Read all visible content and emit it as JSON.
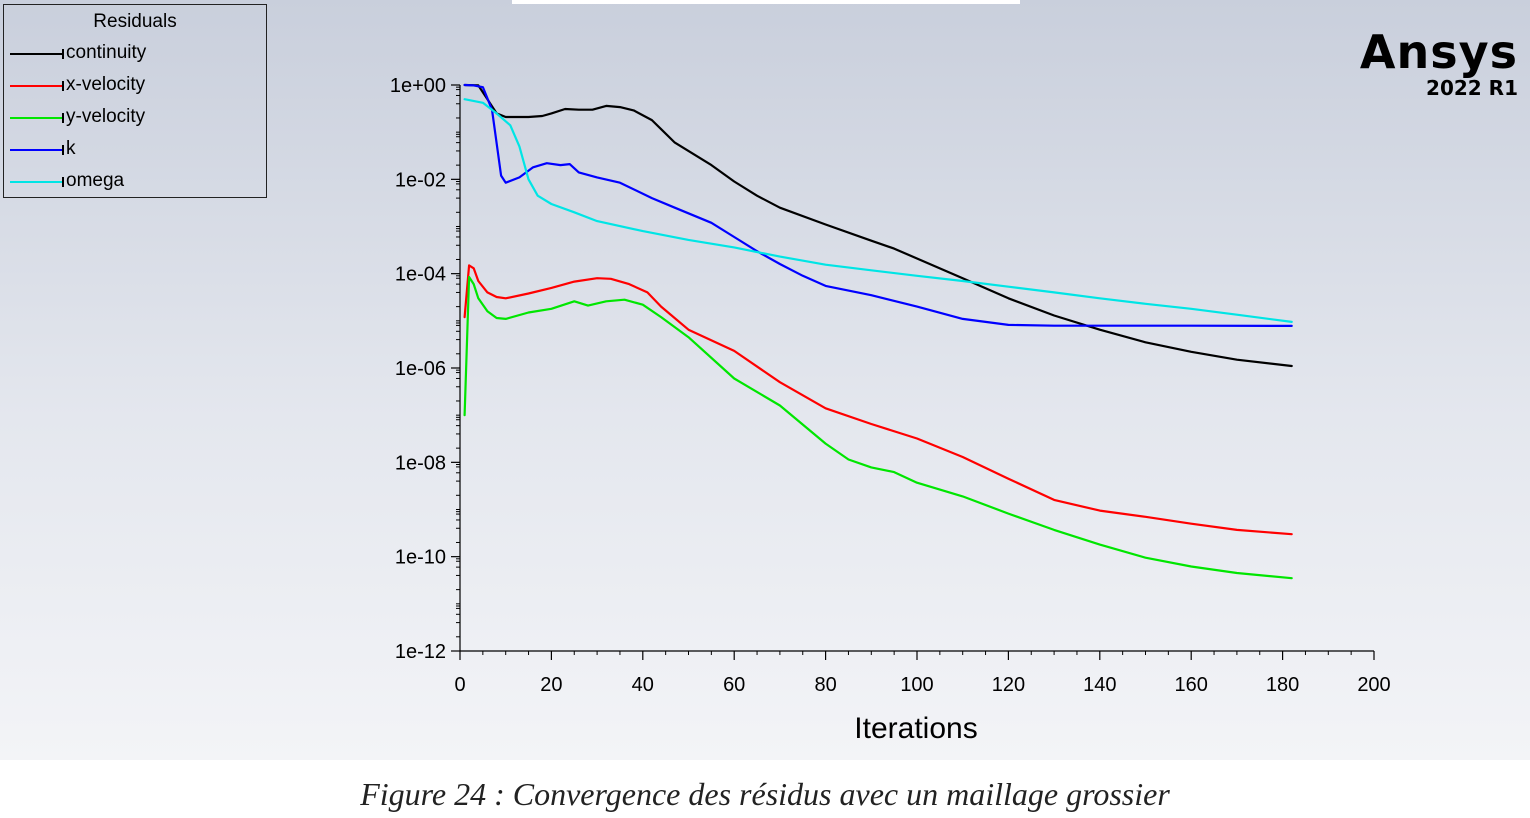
{
  "logo": {
    "brand": "Ansys",
    "version": "2022 R1"
  },
  "caption": "Figure 24 : Convergence des résidus avec un maillage grossier",
  "chart_data": {
    "type": "line",
    "xlabel": "Iterations",
    "ylabel": "",
    "xlim": [
      0,
      200
    ],
    "ylim": [
      1e-12,
      1
    ],
    "yscale": "log",
    "x_ticks": [
      0,
      20,
      40,
      60,
      80,
      100,
      120,
      140,
      160,
      180,
      200
    ],
    "x_tick_labels": [
      "0",
      "20",
      "40",
      "60",
      "80",
      "100",
      "120",
      "140",
      "160",
      "180",
      "200"
    ],
    "y_tick_exponents": [
      0,
      -2,
      -4,
      -6,
      -8,
      -10,
      -12
    ],
    "y_tick_labels": [
      "1e+00",
      "1e-02",
      "1e-04",
      "1e-06",
      "1e-08",
      "1e-10",
      "1e-12"
    ],
    "legend": {
      "title": "Residuals",
      "placement": "top-left"
    },
    "series": [
      {
        "name": "continuity",
        "color": "#000000",
        "points": [
          [
            1,
            1.0
          ],
          [
            4,
            0.98
          ],
          [
            6,
            0.5
          ],
          [
            8,
            0.25
          ],
          [
            10,
            0.21
          ],
          [
            15,
            0.21
          ],
          [
            18,
            0.22
          ],
          [
            20,
            0.25
          ],
          [
            23,
            0.31
          ],
          [
            26,
            0.3
          ],
          [
            29,
            0.3
          ],
          [
            32,
            0.36
          ],
          [
            35,
            0.34
          ],
          [
            38,
            0.29
          ],
          [
            42,
            0.18
          ],
          [
            47,
            0.06
          ],
          [
            55,
            0.02
          ],
          [
            60,
            0.009
          ],
          [
            65,
            0.0045
          ],
          [
            70,
            0.0025
          ],
          [
            80,
            0.0011
          ],
          [
            90,
            0.0005
          ],
          [
            95,
            0.00034
          ],
          [
            100,
            0.00021
          ],
          [
            110,
            8e-05
          ],
          [
            120,
            3e-05
          ],
          [
            130,
            1.3e-05
          ],
          [
            140,
            6.5e-06
          ],
          [
            150,
            3.5e-06
          ],
          [
            160,
            2.2e-06
          ],
          [
            170,
            1.5e-06
          ],
          [
            182,
            1.1e-06
          ]
        ]
      },
      {
        "name": "x-velocity",
        "color": "#ff0000",
        "points": [
          [
            1,
            1.2e-05
          ],
          [
            2,
            0.00015
          ],
          [
            3,
            0.00013
          ],
          [
            4,
            7e-05
          ],
          [
            6,
            4e-05
          ],
          [
            8,
            3.2e-05
          ],
          [
            10,
            3e-05
          ],
          [
            15,
            3.8e-05
          ],
          [
            20,
            5e-05
          ],
          [
            25,
            6.8e-05
          ],
          [
            30,
            8e-05
          ],
          [
            33,
            7.8e-05
          ],
          [
            37,
            6e-05
          ],
          [
            41,
            4e-05
          ],
          [
            44,
            2e-05
          ],
          [
            50,
            6.5e-06
          ],
          [
            60,
            2.3e-06
          ],
          [
            70,
            5e-07
          ],
          [
            80,
            1.4e-07
          ],
          [
            90,
            6.5e-08
          ],
          [
            100,
            3.2e-08
          ],
          [
            110,
            1.3e-08
          ],
          [
            120,
            4.5e-09
          ],
          [
            130,
            1.6e-09
          ],
          [
            140,
            9.5e-10
          ],
          [
            150,
            7e-10
          ],
          [
            160,
            5e-10
          ],
          [
            170,
            3.7e-10
          ],
          [
            182,
            3e-10
          ]
        ]
      },
      {
        "name": "y-velocity",
        "color": "#00e600",
        "points": [
          [
            1,
            1e-07
          ],
          [
            2,
            8.5e-05
          ],
          [
            3,
            6e-05
          ],
          [
            4,
            3e-05
          ],
          [
            6,
            1.6e-05
          ],
          [
            8,
            1.15e-05
          ],
          [
            10,
            1.1e-05
          ],
          [
            15,
            1.5e-05
          ],
          [
            20,
            1.8e-05
          ],
          [
            25,
            2.6e-05
          ],
          [
            28,
            2.1e-05
          ],
          [
            32,
            2.6e-05
          ],
          [
            36,
            2.8e-05
          ],
          [
            40,
            2.2e-05
          ],
          [
            44,
            1.2e-05
          ],
          [
            50,
            4.5e-06
          ],
          [
            60,
            6e-07
          ],
          [
            70,
            1.6e-07
          ],
          [
            80,
            2.5e-08
          ],
          [
            85,
            1.15e-08
          ],
          [
            90,
            7.8e-09
          ],
          [
            95,
            6.2e-09
          ],
          [
            100,
            3.7e-09
          ],
          [
            110,
            1.9e-09
          ],
          [
            120,
            8.2e-10
          ],
          [
            130,
            3.7e-10
          ],
          [
            140,
            1.8e-10
          ],
          [
            150,
            9.5e-11
          ],
          [
            160,
            6.2e-11
          ],
          [
            170,
            4.5e-11
          ],
          [
            182,
            3.5e-11
          ]
        ]
      },
      {
        "name": "k",
        "color": "#0000ff",
        "points": [
          [
            1,
            1.0
          ],
          [
            3,
            0.98
          ],
          [
            5,
            0.9
          ],
          [
            7,
            0.3
          ],
          [
            9,
            0.012
          ],
          [
            10,
            0.0085
          ],
          [
            13,
            0.011
          ],
          [
            16,
            0.018
          ],
          [
            19,
            0.022
          ],
          [
            22,
            0.02
          ],
          [
            24,
            0.021
          ],
          [
            26,
            0.014
          ],
          [
            30,
            0.011
          ],
          [
            35,
            0.0085
          ],
          [
            42,
            0.004
          ],
          [
            47,
            0.0025
          ],
          [
            55,
            0.0012
          ],
          [
            60,
            0.0006
          ],
          [
            65,
            0.0003
          ],
          [
            70,
            0.00016
          ],
          [
            75,
            9e-05
          ],
          [
            80,
            5.5e-05
          ],
          [
            90,
            3.5e-05
          ],
          [
            100,
            2e-05
          ],
          [
            110,
            1.1e-05
          ],
          [
            120,
            8.2e-06
          ],
          [
            130,
            7.9e-06
          ],
          [
            140,
            7.9e-06
          ],
          [
            160,
            7.9e-06
          ],
          [
            182,
            7.8e-06
          ]
        ]
      },
      {
        "name": "omega",
        "color": "#00e5e5",
        "points": [
          [
            1,
            0.5
          ],
          [
            5,
            0.42
          ],
          [
            8,
            0.25
          ],
          [
            11,
            0.14
          ],
          [
            13,
            0.05
          ],
          [
            15,
            0.01
          ],
          [
            17,
            0.0045
          ],
          [
            20,
            0.003
          ],
          [
            25,
            0.002
          ],
          [
            30,
            0.0013
          ],
          [
            40,
            0.0008
          ],
          [
            50,
            0.00052
          ],
          [
            60,
            0.00036
          ],
          [
            70,
            0.00023
          ],
          [
            80,
            0.000155
          ],
          [
            90,
            0.000118
          ],
          [
            100,
            9e-05
          ],
          [
            110,
            7e-05
          ],
          [
            120,
            5.3e-05
          ],
          [
            130,
            4e-05
          ],
          [
            140,
            3e-05
          ],
          [
            150,
            2.3e-05
          ],
          [
            160,
            1.8e-05
          ],
          [
            170,
            1.35e-05
          ],
          [
            182,
            9.5e-06
          ]
        ]
      }
    ]
  }
}
